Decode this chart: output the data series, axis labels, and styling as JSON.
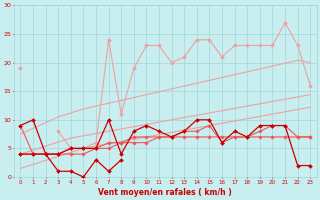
{
  "x": [
    0,
    1,
    2,
    3,
    4,
    5,
    6,
    7,
    8,
    9,
    10,
    11,
    12,
    13,
    14,
    15,
    16,
    17,
    18,
    19,
    20,
    21,
    22,
    23
  ],
  "line_rafales": [
    19,
    null,
    null,
    8,
    5,
    5,
    6,
    24,
    11,
    19,
    23,
    23,
    20,
    21,
    24,
    24,
    21,
    23,
    23,
    23,
    23,
    27,
    23,
    16
  ],
  "line_avg": [
    9,
    10,
    4,
    4,
    5,
    5,
    5,
    10,
    4,
    8,
    9,
    8,
    7,
    8,
    10,
    10,
    6,
    8,
    7,
    9,
    9,
    9,
    2,
    2
  ],
  "line_min": [
    4,
    4,
    4,
    1,
    1,
    0,
    3,
    1,
    3,
    null,
    null,
    null,
    null,
    null,
    null,
    null,
    null,
    null,
    null,
    null,
    null,
    null,
    null,
    null
  ],
  "trend1": [
    1.5,
    2.2,
    2.9,
    3.6,
    4.3,
    5.0,
    5.4,
    5.8,
    6.2,
    6.6,
    7.0,
    7.4,
    7.8,
    8.2,
    8.6,
    9.0,
    9.4,
    9.8,
    10.2,
    10.6,
    11.0,
    11.4,
    11.8,
    12.2
  ],
  "trend2": [
    4.0,
    4.7,
    5.4,
    6.1,
    6.8,
    7.2,
    7.6,
    8.0,
    8.4,
    8.8,
    9.2,
    9.6,
    10.0,
    10.4,
    10.8,
    11.2,
    11.6,
    12.0,
    12.4,
    12.8,
    13.2,
    13.6,
    14.0,
    14.4
  ],
  "trend3": [
    7.5,
    8.5,
    9.5,
    10.5,
    11.2,
    11.9,
    12.4,
    12.9,
    13.4,
    13.9,
    14.4,
    14.9,
    15.4,
    15.9,
    16.4,
    16.9,
    17.4,
    17.9,
    18.4,
    18.9,
    19.4,
    19.9,
    20.4,
    20.0
  ],
  "line_med1": [
    4,
    4,
    4,
    4,
    4,
    4,
    5,
    5,
    6,
    6,
    6,
    7,
    7,
    7,
    7,
    7,
    7,
    7,
    7,
    7,
    7,
    7,
    7,
    7
  ],
  "line_med2": [
    9,
    4,
    4,
    4,
    5,
    5,
    5,
    6,
    6,
    7,
    7,
    7,
    7,
    8,
    8,
    9,
    6,
    7,
    7,
    8,
    9,
    9,
    7,
    7
  ],
  "bg_color": "#c8eef0",
  "grid_color": "#a0d8d8",
  "color_dark": "#cc0000",
  "color_med": "#ee5555",
  "color_light": "#f0a0a0",
  "xlabel": "Vent moyen/en rafales ( km/h )",
  "ylim": [
    0,
    30
  ],
  "xlim": [
    -0.5,
    23.5
  ],
  "yticks": [
    0,
    5,
    10,
    15,
    20,
    25,
    30
  ],
  "xticks": [
    0,
    1,
    2,
    3,
    4,
    5,
    6,
    7,
    8,
    9,
    10,
    11,
    12,
    13,
    14,
    15,
    16,
    17,
    18,
    19,
    20,
    21,
    22,
    23
  ]
}
